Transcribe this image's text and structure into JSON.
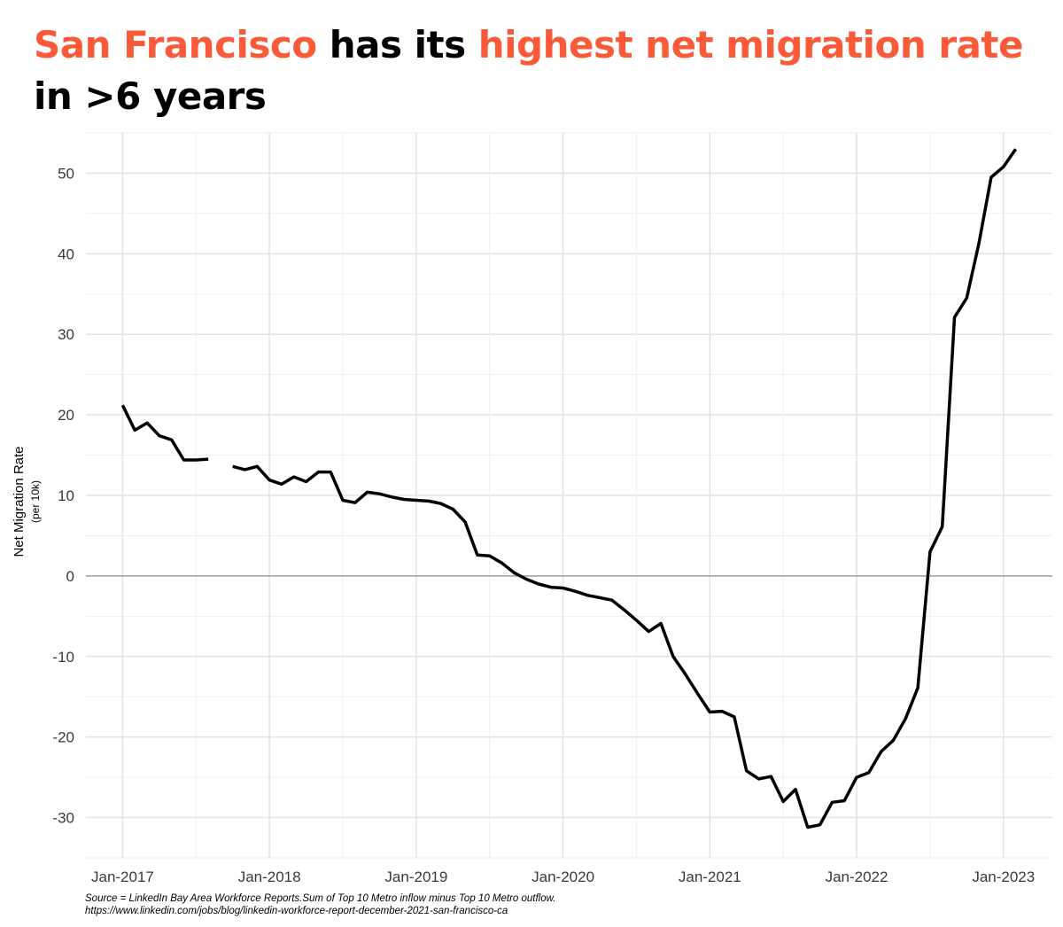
{
  "title": {
    "part1": "San Francisco",
    "part2": " has its ",
    "part3": "highest net migration rate",
    "part4": "in >6 years",
    "highlight_color": "#fa5a37"
  },
  "source": {
    "line1": "Source = LinkedIn Bay Area Workforce Reports.Sum of Top 10 Metro inflow minus Top 10 Metro outflow.",
    "line2": "https://www.linkedin.com/jobs/blog/linkedin-workforce-report-december-2021-san-francisco-ca"
  },
  "chart_data": {
    "type": "line",
    "title": "San Francisco has its highest net migration rate in >6 years",
    "xlabel": "",
    "ylabel": "Net Migration Rate",
    "ylabel_sub": "(per 10k)",
    "x_ticks": [
      "Jan-2017",
      "Jan-2018",
      "Jan-2019",
      "Jan-2020",
      "Jan-2021",
      "Jan-2022",
      "Jan-2023"
    ],
    "y_ticks": [
      -30,
      -20,
      -10,
      0,
      10,
      20,
      30,
      40,
      50
    ],
    "ylim": [
      -35,
      55
    ],
    "xlim": [
      "2016-10",
      "2023-05"
    ],
    "grid": true,
    "line_color": "#000000",
    "zero_line_color": "#a0a0a0",
    "series": [
      {
        "segments": [
          [
            {
              "x": "2017-01",
              "y": 21.2
            },
            {
              "x": "2017-02",
              "y": 18.1
            },
            {
              "x": "2017-03",
              "y": 19.0
            },
            {
              "x": "2017-04",
              "y": 17.4
            },
            {
              "x": "2017-05",
              "y": 16.9
            },
            {
              "x": "2017-06",
              "y": 14.4
            },
            {
              "x": "2017-07",
              "y": 14.4
            },
            {
              "x": "2017-08",
              "y": 14.5
            }
          ],
          [
            {
              "x": "2017-10",
              "y": 13.6
            },
            {
              "x": "2017-11",
              "y": 13.2
            },
            {
              "x": "2017-12",
              "y": 13.6
            },
            {
              "x": "2018-01",
              "y": 11.9
            },
            {
              "x": "2018-02",
              "y": 11.4
            },
            {
              "x": "2018-03",
              "y": 12.3
            },
            {
              "x": "2018-04",
              "y": 11.7
            },
            {
              "x": "2018-05",
              "y": 12.9
            },
            {
              "x": "2018-06",
              "y": 12.9
            },
            {
              "x": "2018-07",
              "y": 9.4
            },
            {
              "x": "2018-08",
              "y": 9.1
            },
            {
              "x": "2018-09",
              "y": 10.4
            },
            {
              "x": "2018-10",
              "y": 10.2
            },
            {
              "x": "2018-11",
              "y": 9.8
            },
            {
              "x": "2018-12",
              "y": 9.5
            },
            {
              "x": "2019-01",
              "y": 9.4
            },
            {
              "x": "2019-02",
              "y": 9.3
            },
            {
              "x": "2019-03",
              "y": 9.0
            },
            {
              "x": "2019-04",
              "y": 8.3
            },
            {
              "x": "2019-05",
              "y": 6.7
            },
            {
              "x": "2019-06",
              "y": 2.6
            },
            {
              "x": "2019-07",
              "y": 2.5
            },
            {
              "x": "2019-08",
              "y": 1.6
            },
            {
              "x": "2019-09",
              "y": 0.4
            },
            {
              "x": "2019-10",
              "y": -0.4
            },
            {
              "x": "2019-11",
              "y": -1.0
            },
            {
              "x": "2019-12",
              "y": -1.4
            },
            {
              "x": "2020-01",
              "y": -1.5
            },
            {
              "x": "2020-02",
              "y": -1.9
            },
            {
              "x": "2020-03",
              "y": -2.4
            },
            {
              "x": "2020-04",
              "y": -2.7
            },
            {
              "x": "2020-05",
              "y": -3.0
            },
            {
              "x": "2020-06",
              "y": -4.2
            },
            {
              "x": "2020-07",
              "y": -5.5
            },
            {
              "x": "2020-08",
              "y": -6.9
            },
            {
              "x": "2020-09",
              "y": -5.9
            },
            {
              "x": "2020-10",
              "y": -10.0
            },
            {
              "x": "2020-11",
              "y": -12.2
            },
            {
              "x": "2020-12",
              "y": -14.6
            },
            {
              "x": "2021-01",
              "y": -16.9
            },
            {
              "x": "2021-02",
              "y": -16.8
            },
            {
              "x": "2021-03",
              "y": -17.5
            },
            {
              "x": "2021-04",
              "y": -24.2
            },
            {
              "x": "2021-05",
              "y": -25.2
            },
            {
              "x": "2021-06",
              "y": -24.9
            },
            {
              "x": "2021-07",
              "y": -28.0
            },
            {
              "x": "2021-08",
              "y": -26.5
            },
            {
              "x": "2021-09",
              "y": -31.2
            },
            {
              "x": "2021-10",
              "y": -30.9
            },
            {
              "x": "2021-11",
              "y": -28.1
            },
            {
              "x": "2021-12",
              "y": -27.9
            },
            {
              "x": "2022-01",
              "y": -25.0
            },
            {
              "x": "2022-02",
              "y": -24.4
            },
            {
              "x": "2022-03",
              "y": -21.8
            },
            {
              "x": "2022-04",
              "y": -20.4
            },
            {
              "x": "2022-05",
              "y": -17.7
            },
            {
              "x": "2022-06",
              "y": -13.9
            },
            {
              "x": "2022-07",
              "y": 3.0
            },
            {
              "x": "2022-08",
              "y": 6.1
            },
            {
              "x": "2022-09",
              "y": 32.1
            },
            {
              "x": "2022-10",
              "y": 34.5
            },
            {
              "x": "2022-11",
              "y": 41.3
            },
            {
              "x": "2022-12",
              "y": 49.5
            },
            {
              "x": "2023-01",
              "y": 50.8
            },
            {
              "x": "2023-02",
              "y": 53.0
            }
          ]
        ]
      }
    ]
  }
}
